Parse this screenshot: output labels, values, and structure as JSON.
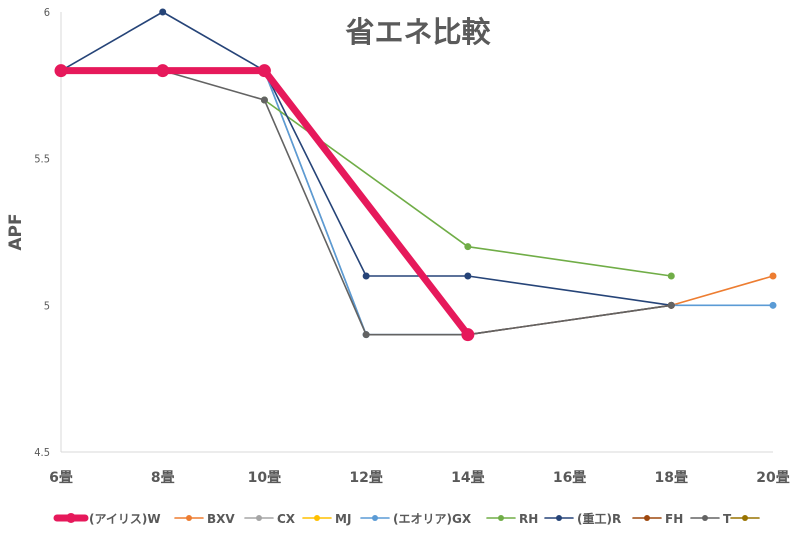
{
  "chart_data": {
    "type": "line",
    "title": "省エネ比較",
    "ylabel": "APF",
    "xlabel": "",
    "categories": [
      "6畳",
      "8畳",
      "10畳",
      "12畳",
      "14畳",
      "16畳",
      "18畳",
      "20畳"
    ],
    "y_tick_labels": [
      "4.5",
      "5",
      "5.5",
      "6"
    ],
    "y_tick_values": [
      4.5,
      5.0,
      5.5,
      6.0
    ],
    "ylim": [
      4.5,
      6.0
    ],
    "grid": false,
    "legend_position": "bottom",
    "series": [
      {
        "name": "(アイリス)W",
        "color": "#e6195b",
        "values": [
          5.8,
          5.8,
          5.8,
          null,
          4.9,
          null,
          null,
          null
        ],
        "emphasis": true
      },
      {
        "name": "BXV",
        "color": "#ed7d31",
        "values": [
          null,
          null,
          null,
          null,
          null,
          null,
          5.0,
          5.1
        ]
      },
      {
        "name": "CX",
        "color": "#a5a5a5",
        "values": [
          5.8,
          5.8,
          5.8,
          4.9,
          4.9,
          null,
          null,
          null
        ]
      },
      {
        "name": "MJ",
        "color": "#ffc000",
        "values": [
          null,
          null,
          null,
          null,
          null,
          null,
          null,
          null
        ]
      },
      {
        "name": "(エオリア)GX",
        "color": "#5b9bd5",
        "values": [
          null,
          null,
          5.8,
          4.9,
          4.9,
          null,
          5.0,
          5.0
        ]
      },
      {
        "name": "RH",
        "color": "#70ad47",
        "values": [
          null,
          null,
          5.7,
          null,
          5.2,
          null,
          5.1,
          null
        ]
      },
      {
        "name": "(重工)R",
        "color": "#264478",
        "values": [
          5.8,
          6.0,
          5.8,
          5.1,
          5.1,
          null,
          5.0,
          null
        ]
      },
      {
        "name": "FH",
        "color": "#9e480e",
        "values": [
          null,
          null,
          null,
          null,
          4.9,
          null,
          5.0,
          null
        ]
      },
      {
        "name": "T",
        "color": "#636363",
        "values": [
          5.8,
          5.8,
          5.7,
          4.9,
          4.9,
          null,
          5.0,
          null
        ]
      },
      {
        "name": "",
        "color": "#997300",
        "values": [
          null,
          null,
          null,
          null,
          null,
          null,
          null,
          null
        ]
      }
    ]
  }
}
